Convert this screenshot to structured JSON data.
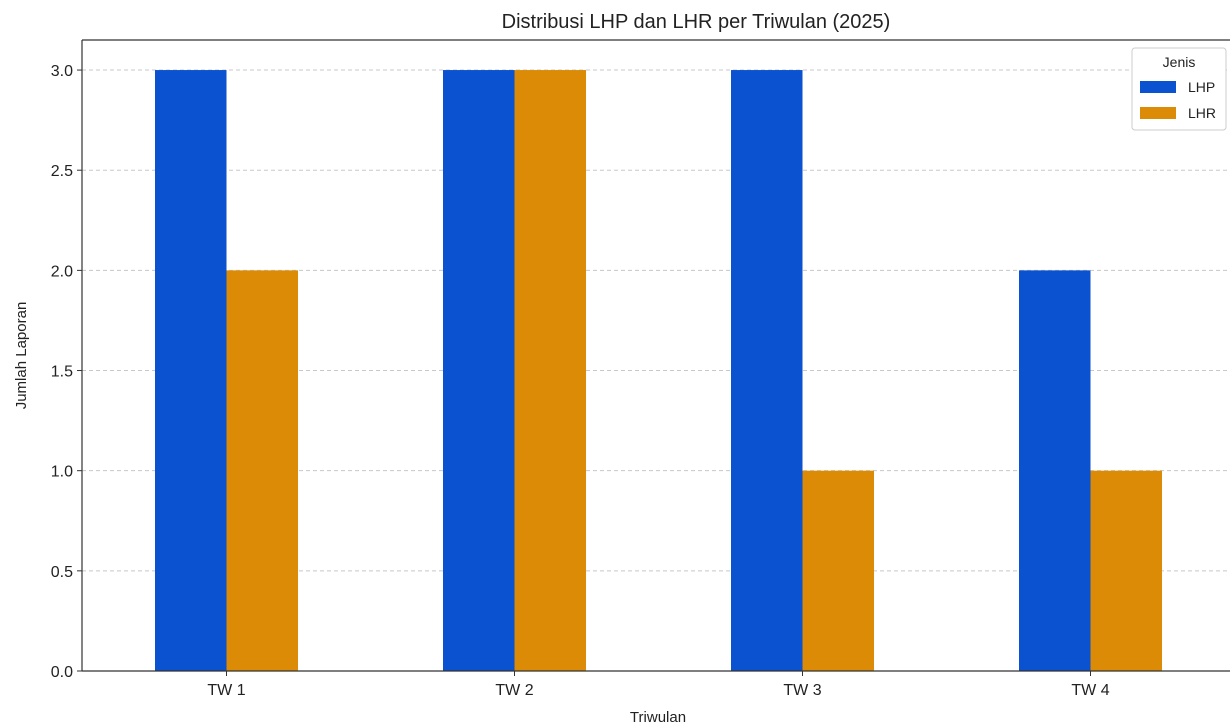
{
  "chart_data": {
    "type": "bar",
    "title": "Distribusi LHP dan LHR per Triwulan (2025)",
    "xlabel": "Triwulan",
    "ylabel": "Jumlah Laporan",
    "categories": [
      "TW 1",
      "TW 2",
      "TW 3",
      "TW 4"
    ],
    "series": [
      {
        "name": "LHP",
        "values": [
          3,
          3,
          3,
          2
        ],
        "color": "#0a52d0"
      },
      {
        "name": "LHR",
        "values": [
          2,
          3,
          1,
          1
        ],
        "color": "#db8b05"
      }
    ],
    "ylim": [
      0,
      3.15
    ],
    "yticks": [
      0.0,
      0.5,
      1.0,
      1.5,
      2.0,
      2.5,
      3.0
    ],
    "ytick_labels": [
      "0.0",
      "0.5",
      "1.0",
      "1.5",
      "2.0",
      "2.5",
      "3.0"
    ],
    "grid": "y-dashed",
    "legend": {
      "title": "Jenis",
      "placement": "top-right"
    }
  }
}
